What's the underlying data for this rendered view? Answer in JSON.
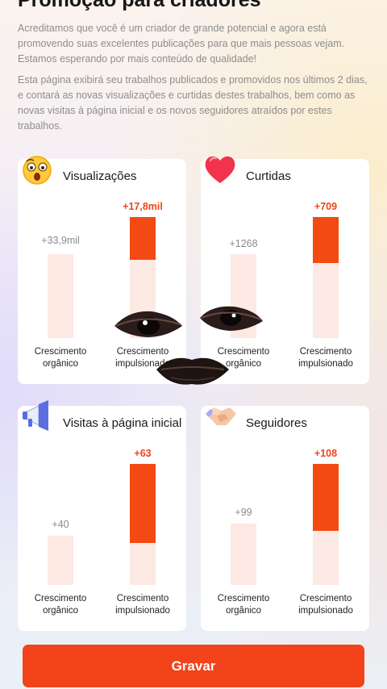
{
  "header": {
    "title": "Promoção para criadores"
  },
  "intro": {
    "paragraph1": "Acreditamos que você é um criador de grande potencial e agora está promovendo suas excelentes publicações para que mais pessoas vejam. Estamos esperando por mais conteúdo de qualidade!",
    "paragraph2": "Esta página exibirá seu trabalhos publicados e promovidos nos últimos 2 dias, e contará as novas visualizações e curtidas destes trabalhos, bem como as novas visitas à página inicial e os novos seguidores atraídos por estes trabalhos."
  },
  "labels": {
    "organic": "Crescimento orgânico",
    "boosted": "Crescimento impulsionado"
  },
  "cards": [
    {
      "title": "Visualizações",
      "icon": "surprised-face-icon",
      "organic": "+33,9mil",
      "boosted": "+17,8mil",
      "organic_fill": 1.0,
      "boosted_fill": 0.35
    },
    {
      "title": "Curtidas",
      "icon": "heart-icon",
      "organic": "+1268",
      "boosted": "+709",
      "organic_fill": 1.0,
      "boosted_fill": 0.38
    },
    {
      "title": "Visitas à página inicial",
      "icon": "megaphone-icon",
      "organic": "+40",
      "boosted": "+63",
      "organic_fill": 1.0,
      "boosted_fill": 0.65
    },
    {
      "title": "Seguidores",
      "icon": "handshake-icon",
      "organic": "+99",
      "boosted": "+108",
      "organic_fill": 1.0,
      "boosted_fill": 0.55
    }
  ],
  "actions": {
    "record": "Gravar"
  },
  "colors": {
    "accent": "#f24a12",
    "bar_bg": "#fde9e3",
    "boost_text": "#f04418"
  }
}
